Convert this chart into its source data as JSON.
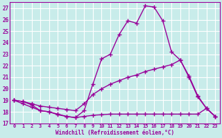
{
  "xlabel": "Windchill (Refroidissement éolien,°C)",
  "bg_color": "#c8ecea",
  "grid_color": "#ffffff",
  "line_color": "#990099",
  "xlim": [
    -0.5,
    23.5
  ],
  "ylim": [
    17,
    27.5
  ],
  "yticks": [
    17,
    18,
    19,
    20,
    21,
    22,
    23,
    24,
    25,
    26,
    27
  ],
  "xticks": [
    0,
    1,
    2,
    3,
    4,
    5,
    6,
    7,
    8,
    9,
    10,
    11,
    12,
    13,
    14,
    15,
    16,
    17,
    18,
    19,
    20,
    21,
    22,
    23
  ],
  "line1_x": [
    0,
    1,
    2,
    3,
    4,
    5,
    6,
    7,
    8,
    9,
    10,
    11,
    12,
    13,
    14,
    15,
    16,
    17,
    18,
    19,
    20,
    21,
    22,
    23
  ],
  "line1_y": [
    19.0,
    18.9,
    18.6,
    18.1,
    18.0,
    17.8,
    17.6,
    17.5,
    18.1,
    20.4,
    22.6,
    23.0,
    24.7,
    25.9,
    25.7,
    27.2,
    27.1,
    25.9,
    23.2,
    22.5,
    21.0,
    19.3,
    18.3,
    17.6
  ],
  "line2_x": [
    0,
    1,
    2,
    3,
    4,
    5,
    6,
    7,
    8,
    9,
    10,
    11,
    12,
    13,
    14,
    15,
    16,
    17,
    18,
    19,
    20,
    21,
    22,
    23
  ],
  "line2_y": [
    19.0,
    18.9,
    18.7,
    18.5,
    18.4,
    18.3,
    18.2,
    18.1,
    18.7,
    19.5,
    20.0,
    20.4,
    20.7,
    21.0,
    21.2,
    21.5,
    21.7,
    21.9,
    22.1,
    22.5,
    21.1,
    19.4,
    18.3,
    17.6
  ],
  "line3_x": [
    0,
    1,
    2,
    3,
    4,
    5,
    6,
    7,
    8,
    9,
    10,
    11,
    12,
    13,
    14,
    15,
    16,
    17,
    18,
    19,
    20,
    21,
    22,
    23
  ],
  "line3_y": [
    19.0,
    18.7,
    18.4,
    18.1,
    18.0,
    17.75,
    17.6,
    17.5,
    17.6,
    17.7,
    17.75,
    17.8,
    17.8,
    17.8,
    17.8,
    17.8,
    17.8,
    17.8,
    17.8,
    17.8,
    17.8,
    17.8,
    18.3,
    17.6
  ]
}
